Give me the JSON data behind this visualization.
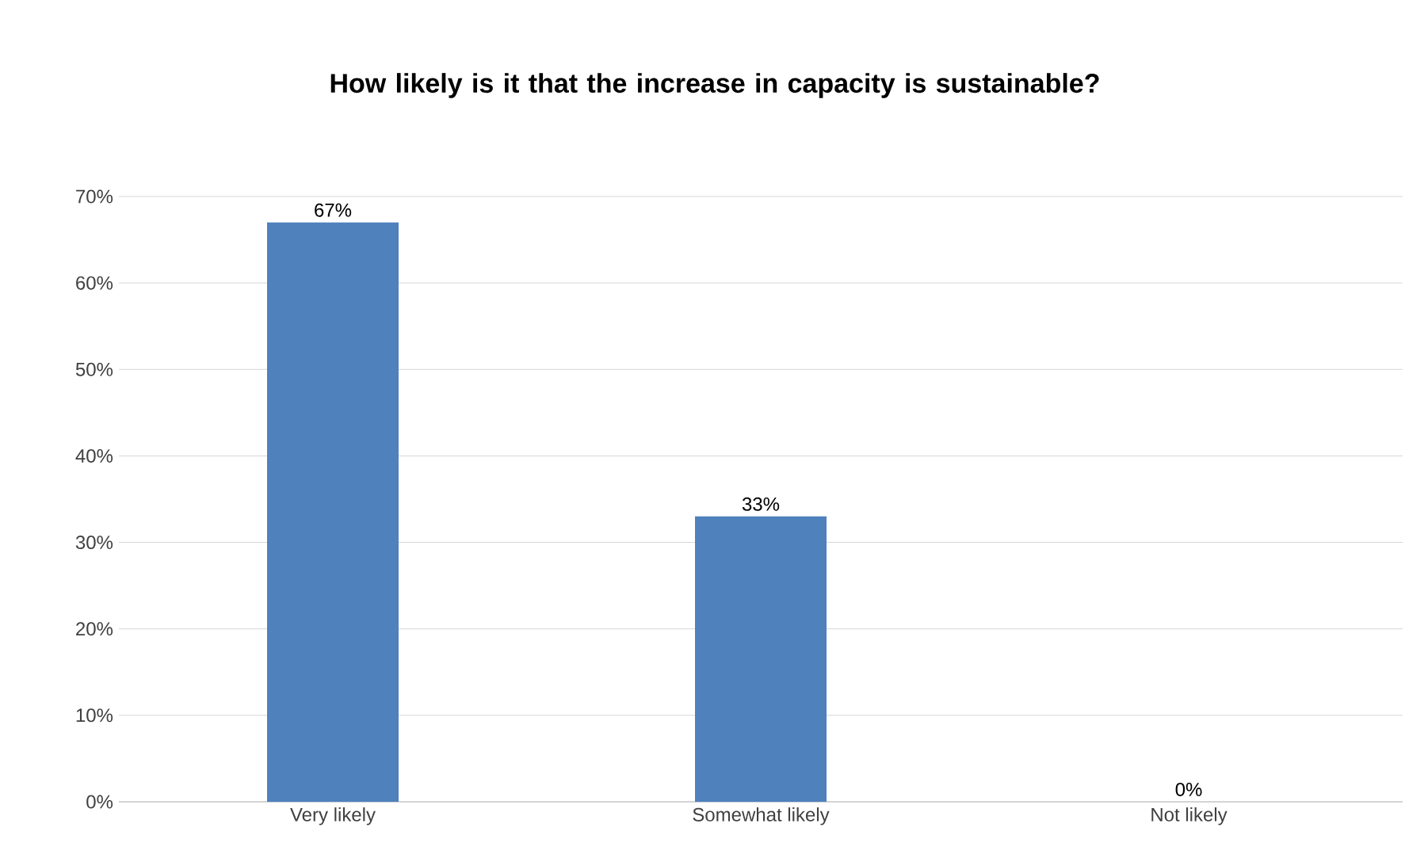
{
  "chart_data": {
    "type": "bar",
    "title": "How likely is it that the increase in capacity is sustainable?",
    "categories": [
      "Very likely",
      "Somewhat likely",
      "Not likely"
    ],
    "values": [
      67,
      33,
      0
    ],
    "value_labels": [
      "67%",
      "33%",
      "0%"
    ],
    "color": "#4f81bd",
    "ylim": [
      0,
      70
    ],
    "yticks": [
      {
        "value": 0,
        "label": "0%"
      },
      {
        "value": 10,
        "label": "10%"
      },
      {
        "value": 20,
        "label": "20%"
      },
      {
        "value": 30,
        "label": "30%"
      },
      {
        "value": 40,
        "label": "40%"
      },
      {
        "value": 50,
        "label": "50%"
      },
      {
        "value": 60,
        "label": "60%"
      },
      {
        "value": 70,
        "label": "70%"
      }
    ],
    "grid": "y"
  }
}
